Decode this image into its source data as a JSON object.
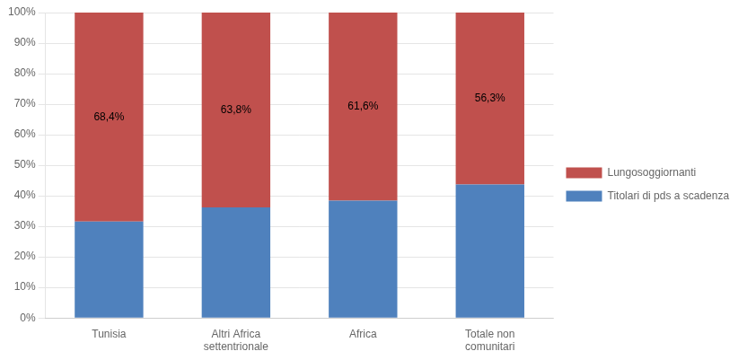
{
  "chart_data": {
    "type": "bar",
    "stacked": true,
    "categories": [
      "Tunisia",
      "Altri Africa\nsettentrionale",
      "Africa",
      "Totale non\ncomunitari"
    ],
    "series": [
      {
        "name": "Titolari di pds a scadenza",
        "color": "#4F81BD",
        "values": [
          31.6,
          36.2,
          38.4,
          43.7
        ]
      },
      {
        "name": "Lungosoggiornanti",
        "color": "#C0504D",
        "values": [
          68.4,
          63.8,
          61.6,
          56.3
        ],
        "data_labels": true,
        "value_labels": [
          "68,4%",
          "63,8%",
          "61,6%",
          "56,3%"
        ]
      }
    ],
    "ylim": [
      0,
      100
    ],
    "yticks": [
      {
        "value": 0,
        "label": "0%"
      },
      {
        "value": 10,
        "label": "10%"
      },
      {
        "value": 20,
        "label": "20%"
      },
      {
        "value": 30,
        "label": "30%"
      },
      {
        "value": 40,
        "label": "40%"
      },
      {
        "value": 50,
        "label": "50%"
      },
      {
        "value": 60,
        "label": "60%"
      },
      {
        "value": 70,
        "label": "70%"
      },
      {
        "value": 80,
        "label": "80%"
      },
      {
        "value": 90,
        "label": "90%"
      },
      {
        "value": 100,
        "label": "100%"
      }
    ],
    "grid": true,
    "legend": "right"
  }
}
